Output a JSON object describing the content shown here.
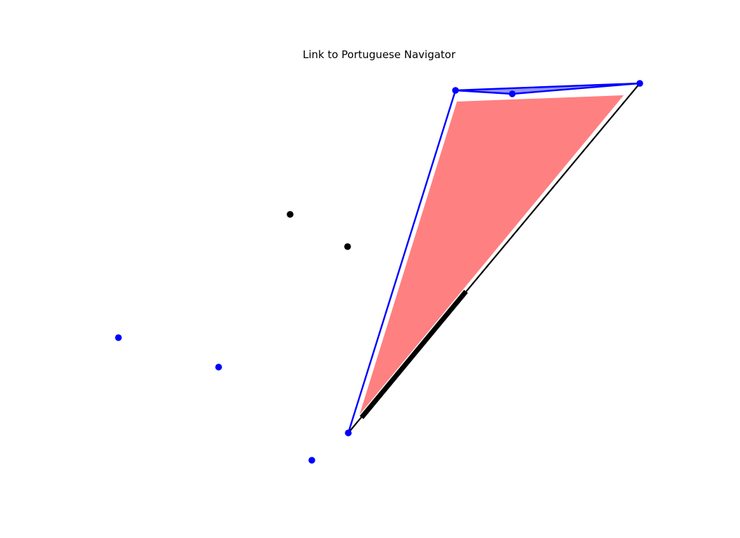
{
  "title": "Link to Portuguese Navigator",
  "colors": {
    "background": "#ffffff",
    "outline_blue": "#0000ff",
    "blue_fill": "#8080ff",
    "red_fill": "#ff8080",
    "black": "#000000"
  }
}
